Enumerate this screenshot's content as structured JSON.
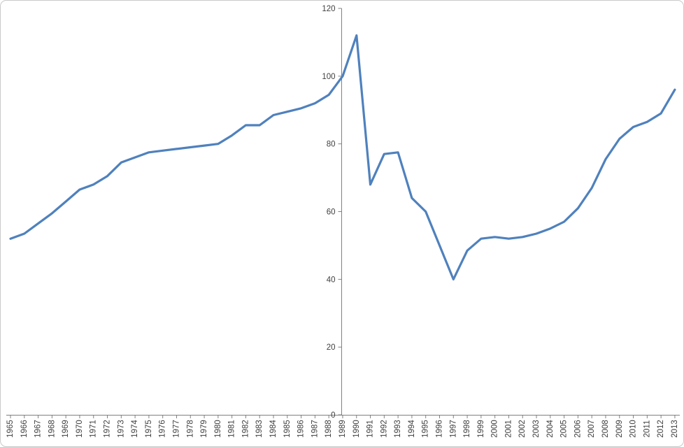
{
  "chart_data": {
    "type": "line",
    "title": "",
    "xlabel": "",
    "ylabel": "",
    "x": [
      1965,
      1966,
      1967,
      1968,
      1969,
      1970,
      1971,
      1972,
      1973,
      1974,
      1975,
      1976,
      1977,
      1978,
      1979,
      1980,
      1981,
      1982,
      1983,
      1984,
      1985,
      1986,
      1987,
      1988,
      1989,
      1990,
      1991,
      1992,
      1993,
      1994,
      1995,
      1996,
      1997,
      1998,
      1999,
      2000,
      2001,
      2002,
      2003,
      2004,
      2005,
      2006,
      2007,
      2008,
      2009,
      2010,
      2011,
      2012,
      2013
    ],
    "series": [
      {
        "name": "",
        "color": "#4F81BD",
        "values": [
          52,
          53.5,
          56.5,
          59.5,
          63,
          66.5,
          68,
          70.5,
          74.5,
          76,
          77.5,
          78,
          78.5,
          79,
          79.5,
          80,
          82.5,
          85.5,
          85.5,
          88.5,
          89.5,
          90.5,
          92,
          94.5,
          100,
          112,
          68,
          77,
          77.5,
          64,
          60,
          50,
          40,
          48.5,
          52,
          52.5,
          52,
          52.5,
          53.5,
          55,
          57,
          61,
          67,
          75.5,
          81.5,
          85,
          86.5,
          89,
          96
        ]
      }
    ],
    "ylim": [
      0,
      120
    ],
    "ytick_step": 20,
    "ytick_labels": [
      "0",
      "20",
      "40",
      "60",
      "80",
      "100",
      "120"
    ],
    "y_axis_cross_year": 1989,
    "grid": false,
    "legend": false,
    "x_labels_rotated_degrees": 90,
    "axis_color": "#808080",
    "tick_label_color": "#3F3F3F",
    "frame_border_color": "#C9C9C9",
    "background_color": "#FFFFFF"
  }
}
